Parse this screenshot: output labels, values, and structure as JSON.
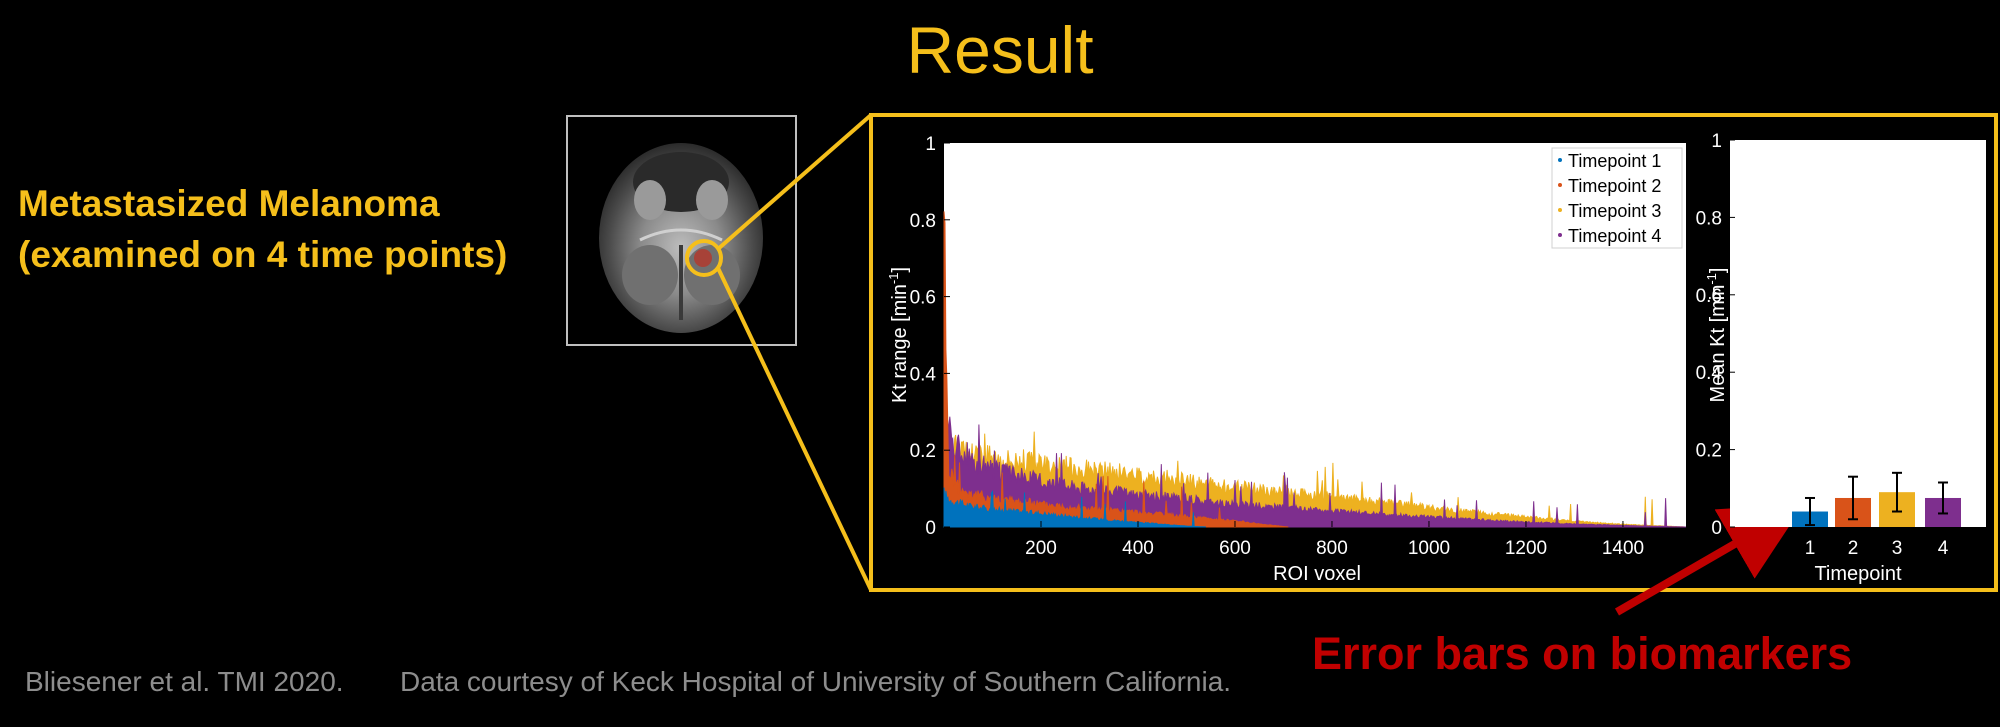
{
  "slide": {
    "title": "Result",
    "subject_line1": "Metastasized Melanoma",
    "subject_line2": "(examined on 4 time points)",
    "citation": "Bliesener et al. TMI 2020.",
    "courtesy": "Data courtesy of Keck Hospital of University of Southern California.",
    "annotation": "Error bars on biomarkers"
  },
  "colors": {
    "accent": "#f5bf1b",
    "annotation": "#c00000",
    "muted_text": "#8d8d8d",
    "tp1": "#0072bd",
    "tp2": "#d95319",
    "tp3": "#edb120",
    "tp4": "#7e2f8e"
  },
  "chart_data": [
    {
      "type": "area",
      "xlabel": "ROI voxel",
      "ylabel": "Kt range [min",
      "ylabel_sup": "-1",
      "ylabel_close": "]",
      "xlim": [
        0,
        1530
      ],
      "ylim": [
        0,
        1
      ],
      "xticks": [
        200,
        400,
        600,
        800,
        1000,
        1200,
        1400
      ],
      "yticks": [
        0,
        0.2,
        0.4,
        0.6,
        0.8,
        1
      ],
      "ytick_labels": [
        "0",
        "0.2",
        "0.4",
        "0.6",
        "0.8",
        "1"
      ],
      "legend_position": "top-right",
      "series": [
        {
          "name": "Timepoint 1",
          "color": "#0072bd",
          "x": [
            0,
            10,
            50,
            100,
            200,
            300,
            400,
            480,
            540
          ],
          "y": [
            0.09,
            0.07,
            0.055,
            0.045,
            0.035,
            0.022,
            0.012,
            0.004,
            0
          ]
        },
        {
          "name": "Timepoint 2",
          "color": "#d95319",
          "x": [
            0,
            5,
            10,
            30,
            60,
            100,
            200,
            300,
            400,
            500,
            600,
            650,
            710
          ],
          "y": [
            0.95,
            0.4,
            0.15,
            0.1,
            0.085,
            0.075,
            0.06,
            0.048,
            0.038,
            0.027,
            0.016,
            0.008,
            0
          ]
        },
        {
          "name": "Timepoint 3",
          "color": "#edb120",
          "x": [
            0,
            10,
            40,
            100,
            200,
            300,
            400,
            500,
            600,
            700,
            800,
            900,
            1000,
            1100,
            1200,
            1300,
            1400,
            1530
          ],
          "y": [
            0.25,
            0.22,
            0.2,
            0.185,
            0.165,
            0.15,
            0.135,
            0.12,
            0.105,
            0.092,
            0.078,
            0.065,
            0.05,
            0.037,
            0.026,
            0.015,
            0.007,
            0
          ]
        },
        {
          "name": "Timepoint 4",
          "color": "#7e2f8e",
          "x": [
            0,
            5,
            20,
            60,
            100,
            200,
            300,
            400,
            500,
            600,
            700,
            800,
            900,
            1000,
            1100,
            1200,
            1300,
            1400,
            1530
          ],
          "y": [
            0.7,
            0.3,
            0.22,
            0.17,
            0.15,
            0.12,
            0.1,
            0.085,
            0.072,
            0.06,
            0.05,
            0.041,
            0.033,
            0.026,
            0.019,
            0.013,
            0.008,
            0.004,
            0
          ]
        }
      ]
    },
    {
      "type": "bar",
      "xlabel": "Timepoint",
      "ylabel": "Mean Kt [min",
      "ylabel_sup": "-1",
      "ylabel_close": "]",
      "categories": [
        "1",
        "2",
        "3",
        "4"
      ],
      "values": [
        0.04,
        0.075,
        0.09,
        0.075
      ],
      "errors": [
        0.035,
        0.055,
        0.05,
        0.04
      ],
      "bar_colors": [
        "#0072bd",
        "#d95319",
        "#edb120",
        "#7e2f8e"
      ],
      "ylim": [
        0,
        1
      ],
      "yticks": [
        0,
        0.2,
        0.4,
        0.6,
        0.8,
        1
      ],
      "ytick_labels": [
        "0",
        "0.2",
        "0.4",
        "0.6",
        "0.8",
        "1"
      ]
    }
  ]
}
